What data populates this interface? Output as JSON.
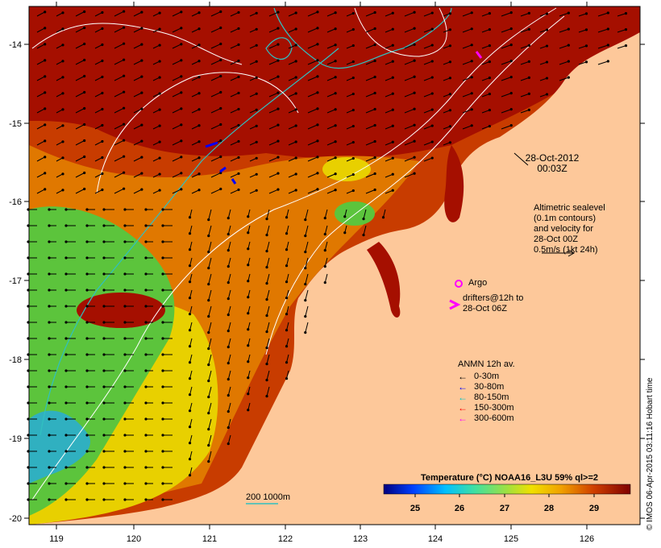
{
  "map": {
    "x_ticks": [
      "119",
      "120",
      "121",
      "122",
      "123",
      "124",
      "125",
      "126"
    ],
    "y_ticks": [
      "-14",
      "-15",
      "-16",
      "-17",
      "-18",
      "-19",
      "-20"
    ]
  },
  "colors": {
    "land": "#fdc89a",
    "very_warm": "#a50f00",
    "warm": "#c83c00",
    "mid": "#e07800",
    "yellow": "#e8d000",
    "green": "#5cc43c",
    "cyan": "#30b0c0",
    "frame": "#ffffff"
  },
  "annotations": {
    "timestamp_date": "28-Oct-2012",
    "timestamp_time": "00:03Z",
    "alt_line1": "Altimetric sealevel",
    "alt_line2": "(0.1m contours)",
    "alt_line3": "and velocity for",
    "alt_line4": "28-Oct 00Z",
    "alt_line5": "0.5m/s (1kt 24h)",
    "argo_label": "Argo",
    "drifters_line1": "drifters@12h to",
    "drifters_line2": "28-Oct 06Z",
    "isobath_label": "200  1000m"
  },
  "anmn": {
    "title": "ANMN 12h av.",
    "items": [
      {
        "label": "0-30m",
        "color": "#000000"
      },
      {
        "label": "30-80m",
        "color": "#0000ff"
      },
      {
        "label": "80-150m",
        "color": "#00c8c8"
      },
      {
        "label": "150-300m",
        "color": "#ff0000"
      },
      {
        "label": "300-600m",
        "color": "#ff00ff"
      }
    ]
  },
  "colorbar": {
    "title": "Temperature (°C) NOAA16_L3U 59% ql>=2",
    "ticks": [
      "25",
      "26",
      "27",
      "28",
      "29"
    ]
  },
  "credit": "© IMOS 06-Apr-2015 03:11:16 Hobart time"
}
